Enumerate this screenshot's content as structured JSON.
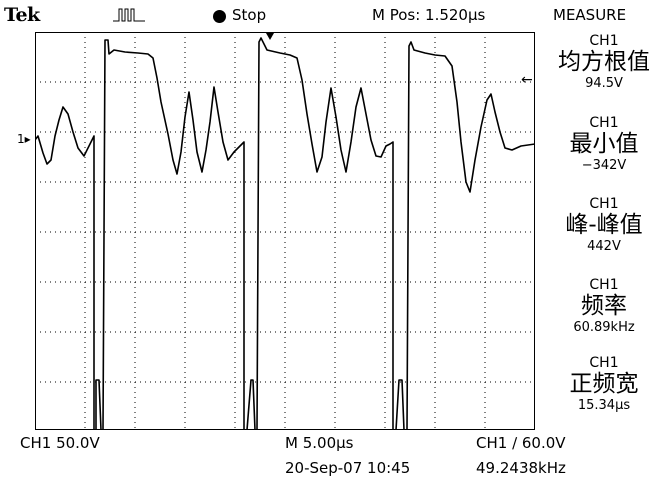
{
  "header": {
    "brand": "Tek",
    "run_state": "Stop",
    "m_pos": "M Pos: 1.520µs",
    "menu_title": "MEASURE"
  },
  "measurements": [
    {
      "channel": "CH1",
      "name": "均方根值",
      "value": "94.5V"
    },
    {
      "channel": "CH1",
      "name": "最小值",
      "value": "−342V"
    },
    {
      "channel": "CH1",
      "name": "峰-峰值",
      "value": "442V"
    },
    {
      "channel": "CH1",
      "name": "频率",
      "value": "60.89kHz"
    },
    {
      "channel": "CH1",
      "name": "正频宽",
      "value": "15.34µs"
    }
  ],
  "channel_marker": "1",
  "status": {
    "ch1_scale": "CH1  50.0V",
    "timebase": "M 5.00µs",
    "trigger": "CH1 ∕ 60.0V",
    "datetime": "20-Sep-07 10:45",
    "trigger_freq": "49.2438kHz"
  },
  "colors": {
    "background": "#ffffff",
    "trace": "#000000",
    "graticule": "#000000"
  }
}
